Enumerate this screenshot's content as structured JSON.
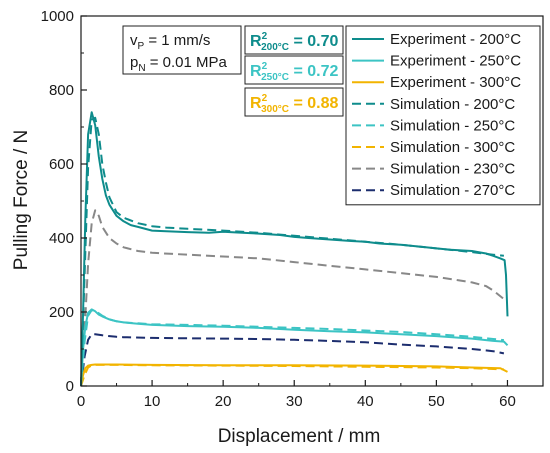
{
  "chart_data": {
    "type": "line",
    "xlabel": "Displacement / mm",
    "ylabel": "Pulling Force / N",
    "xlim": [
      0,
      65
    ],
    "ylim": [
      0,
      1000
    ],
    "xticks": [
      0,
      10,
      20,
      30,
      40,
      50,
      60
    ],
    "yticks": [
      0,
      200,
      400,
      600,
      800,
      1000
    ],
    "grid": false,
    "legend_position": "top-right",
    "annotation": {
      "line1_main": "v",
      "line1_sub": "P",
      "line1_rest": " = 1 mm/s",
      "line2_main": "p",
      "line2_sub": "N",
      "line2_rest": " = 0.01 MPa"
    },
    "r2_boxes": [
      {
        "prefix": "R",
        "sup": "2",
        "sub": "200°C",
        "value": " = 0.70",
        "color": "#0e8c8c"
      },
      {
        "prefix": "R",
        "sup": "2",
        "sub": "250°C",
        "value": " = 0.72",
        "color": "#3cc4c4"
      },
      {
        "prefix": "R",
        "sup": "2",
        "sub": "300°C",
        "value": " = 0.88",
        "color": "#f2b400"
      }
    ],
    "series": [
      {
        "name": "Experiment - 200°C",
        "style": "solid",
        "color": "#0e8c8c",
        "x": [
          0,
          0.3,
          0.6,
          1.0,
          1.5,
          2.0,
          2.5,
          3.0,
          3.5,
          4.0,
          5.0,
          6.0,
          7.0,
          8.0,
          10,
          12,
          15,
          18,
          20,
          22,
          25,
          28,
          30,
          32,
          35,
          38,
          40,
          42,
          45,
          48,
          50,
          52,
          55,
          57,
          58,
          59,
          59.6,
          59.8,
          60
        ],
        "y": [
          0,
          200,
          450,
          680,
          740,
          705,
          620,
          560,
          515,
          490,
          460,
          445,
          435,
          430,
          420,
          418,
          416,
          414,
          417,
          415,
          412,
          408,
          403,
          400,
          396,
          392,
          390,
          385,
          382,
          376,
          372,
          368,
          365,
          358,
          352,
          345,
          340,
          300,
          188
        ]
      },
      {
        "name": "Experiment - 250°C",
        "style": "solid",
        "color": "#3cc4c4",
        "x": [
          0,
          0.3,
          0.6,
          1.0,
          1.5,
          2.0,
          2.5,
          3.0,
          4.0,
          5.0,
          6.0,
          8.0,
          10,
          15,
          20,
          25,
          30,
          35,
          40,
          45,
          50,
          55,
          58,
          59.5,
          60
        ],
        "y": [
          0,
          100,
          160,
          198,
          207,
          202,
          193,
          188,
          180,
          175,
          172,
          168,
          165,
          162,
          160,
          157,
          152,
          148,
          145,
          140,
          135,
          128,
          122,
          120,
          110
        ]
      },
      {
        "name": "Experiment - 300°C",
        "style": "solid",
        "color": "#f2b400",
        "x": [
          0,
          0.3,
          0.6,
          1.0,
          1.5,
          2.0,
          3.0,
          5.0,
          10,
          20,
          30,
          40,
          50,
          55,
          59,
          60
        ],
        "y": [
          0,
          30,
          48,
          55,
          57,
          58,
          58,
          58,
          57,
          56,
          56,
          55,
          53,
          50,
          48,
          38
        ]
      },
      {
        "name": "Simulation - 200°C",
        "style": "dashed",
        "color": "#0e8c8c",
        "x": [
          0,
          0.5,
          1.0,
          1.5,
          2.0,
          2.5,
          3.0,
          3.5,
          4.0,
          5.0,
          6.0,
          8.0,
          10,
          12,
          15,
          20,
          25,
          30,
          35,
          40,
          45,
          50,
          55,
          58,
          59.5
        ],
        "y": [
          0,
          300,
          590,
          720,
          725,
          680,
          600,
          550,
          510,
          470,
          455,
          440,
          432,
          428,
          425,
          420,
          414,
          406,
          398,
          390,
          382,
          372,
          362,
          355,
          352
        ]
      },
      {
        "name": "Simulation - 250°C",
        "style": "dashed",
        "color": "#3cc4c4",
        "x": [
          0,
          0.5,
          1.0,
          1.5,
          2.0,
          3.0,
          4.0,
          5.0,
          6.0,
          10,
          15,
          20,
          25,
          30,
          35,
          40,
          45,
          50,
          55,
          58,
          59.5
        ],
        "y": [
          0,
          120,
          190,
          205,
          203,
          190,
          180,
          175,
          172,
          167,
          165,
          163,
          160,
          157,
          154,
          150,
          146,
          140,
          133,
          127,
          124
        ]
      },
      {
        "name": "Simulation - 300°C",
        "style": "dashed",
        "color": "#f2b400",
        "x": [
          0,
          0.5,
          1.0,
          1.5,
          2.0,
          3.0,
          5.0,
          10,
          20,
          30,
          40,
          50,
          55,
          59.5
        ],
        "y": [
          0,
          30,
          50,
          56,
          57,
          57,
          57,
          56,
          55,
          54,
          52,
          50,
          48,
          45
        ]
      },
      {
        "name": "Simulation - 230°C",
        "style": "dashed",
        "color": "#888888",
        "x": [
          0,
          0.5,
          1.0,
          1.5,
          2.0,
          2.5,
          3.0,
          4.0,
          5.0,
          6.0,
          8.0,
          10,
          15,
          20,
          25,
          30,
          35,
          40,
          45,
          50,
          55,
          57,
          58,
          59.5
        ],
        "y": [
          0,
          150,
          330,
          440,
          475,
          460,
          430,
          400,
          385,
          375,
          365,
          360,
          355,
          350,
          345,
          335,
          325,
          315,
          305,
          295,
          280,
          270,
          258,
          235
        ]
      },
      {
        "name": "Simulation - 270°C",
        "style": "dashed",
        "color": "#1c2d6e",
        "x": [
          0,
          0.5,
          1.0,
          1.5,
          2.0,
          3.0,
          4.0,
          5.0,
          6.0,
          10,
          15,
          20,
          25,
          30,
          35,
          40,
          45,
          50,
          55,
          58,
          59.5
        ],
        "y": [
          0,
          80,
          125,
          140,
          140,
          137,
          135,
          133,
          132,
          130,
          129,
          128,
          127,
          125,
          122,
          118,
          112,
          107,
          100,
          94,
          88
        ]
      }
    ]
  }
}
